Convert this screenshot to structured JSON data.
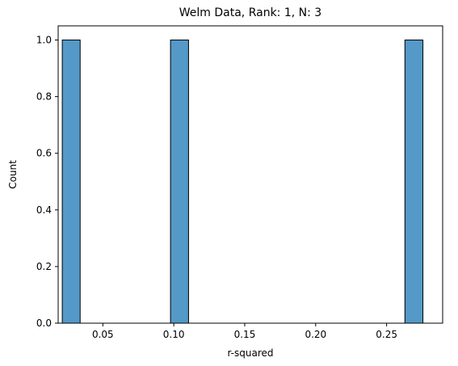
{
  "chart_data": {
    "type": "bar",
    "title": "Welm Data, Rank: 1, N: 3",
    "xlabel": "r-squared",
    "ylabel": "Count",
    "xlim": [
      0.0185,
      0.2895
    ],
    "ylim": [
      0,
      1.05
    ],
    "xticks": [
      "0.05",
      "0.10",
      "0.15",
      "0.20",
      "0.25"
    ],
    "xtick_values": [
      0.05,
      0.1,
      0.15,
      0.2,
      0.25
    ],
    "yticks": [
      "0.0",
      "0.2",
      "0.4",
      "0.6",
      "0.8",
      "1.0"
    ],
    "ytick_values": [
      0.0,
      0.2,
      0.4,
      0.6,
      0.8,
      1.0
    ],
    "bins": [
      {
        "x0": 0.0214,
        "x1": 0.034,
        "count": 1
      },
      {
        "x0": 0.0977,
        "x1": 0.1104,
        "count": 1
      },
      {
        "x0": 0.2629,
        "x1": 0.2756,
        "count": 1
      }
    ],
    "grid": false,
    "legend": false,
    "bar_color": "#5499c7",
    "edge_color": "#000000"
  }
}
